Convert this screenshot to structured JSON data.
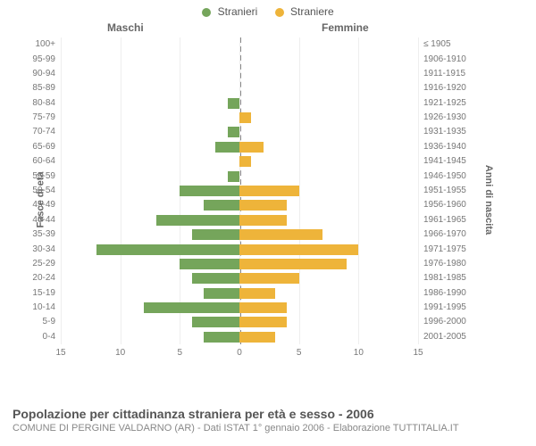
{
  "legend": {
    "male_label": "Stranieri",
    "female_label": "Straniere"
  },
  "chart": {
    "type": "population-pyramid",
    "male_header": "Maschi",
    "female_header": "Femmine",
    "left_axis_title": "Fasce di età",
    "right_axis_title": "Anni di nascita",
    "colors": {
      "male": "#75a55b",
      "female": "#eeb43a",
      "grid": "#eeeeee",
      "center_line": "#888888",
      "background": "#ffffff"
    },
    "xlim": [
      0,
      15
    ],
    "xticks_left": [
      15,
      10,
      5,
      0
    ],
    "xticks_right": [
      0,
      5,
      10,
      15
    ],
    "rows": [
      {
        "age": "100+",
        "birth": "≤ 1905",
        "m": 0,
        "f": 0
      },
      {
        "age": "95-99",
        "birth": "1906-1910",
        "m": 0,
        "f": 0
      },
      {
        "age": "90-94",
        "birth": "1911-1915",
        "m": 0,
        "f": 0
      },
      {
        "age": "85-89",
        "birth": "1916-1920",
        "m": 0,
        "f": 0
      },
      {
        "age": "80-84",
        "birth": "1921-1925",
        "m": 1,
        "f": 0
      },
      {
        "age": "75-79",
        "birth": "1926-1930",
        "m": 0,
        "f": 1
      },
      {
        "age": "70-74",
        "birth": "1931-1935",
        "m": 1,
        "f": 0
      },
      {
        "age": "65-69",
        "birth": "1936-1940",
        "m": 2,
        "f": 2
      },
      {
        "age": "60-64",
        "birth": "1941-1945",
        "m": 0,
        "f": 1
      },
      {
        "age": "55-59",
        "birth": "1946-1950",
        "m": 1,
        "f": 0
      },
      {
        "age": "50-54",
        "birth": "1951-1955",
        "m": 5,
        "f": 5
      },
      {
        "age": "45-49",
        "birth": "1956-1960",
        "m": 3,
        "f": 4
      },
      {
        "age": "40-44",
        "birth": "1961-1965",
        "m": 7,
        "f": 4
      },
      {
        "age": "35-39",
        "birth": "1966-1970",
        "m": 4,
        "f": 7
      },
      {
        "age": "30-34",
        "birth": "1971-1975",
        "m": 12,
        "f": 10
      },
      {
        "age": "25-29",
        "birth": "1976-1980",
        "m": 5,
        "f": 9
      },
      {
        "age": "20-24",
        "birth": "1981-1985",
        "m": 4,
        "f": 5
      },
      {
        "age": "15-19",
        "birth": "1986-1990",
        "m": 3,
        "f": 3
      },
      {
        "age": "10-14",
        "birth": "1991-1995",
        "m": 8,
        "f": 4
      },
      {
        "age": "5-9",
        "birth": "1996-2000",
        "m": 4,
        "f": 4
      },
      {
        "age": "0-4",
        "birth": "2001-2005",
        "m": 3,
        "f": 3
      }
    ]
  },
  "footer": {
    "title": "Popolazione per cittadinanza straniera per età e sesso - 2006",
    "subtitle": "COMUNE DI PERGINE VALDARNO (AR) - Dati ISTAT 1° gennaio 2006 - Elaborazione TUTTITALIA.IT"
  }
}
